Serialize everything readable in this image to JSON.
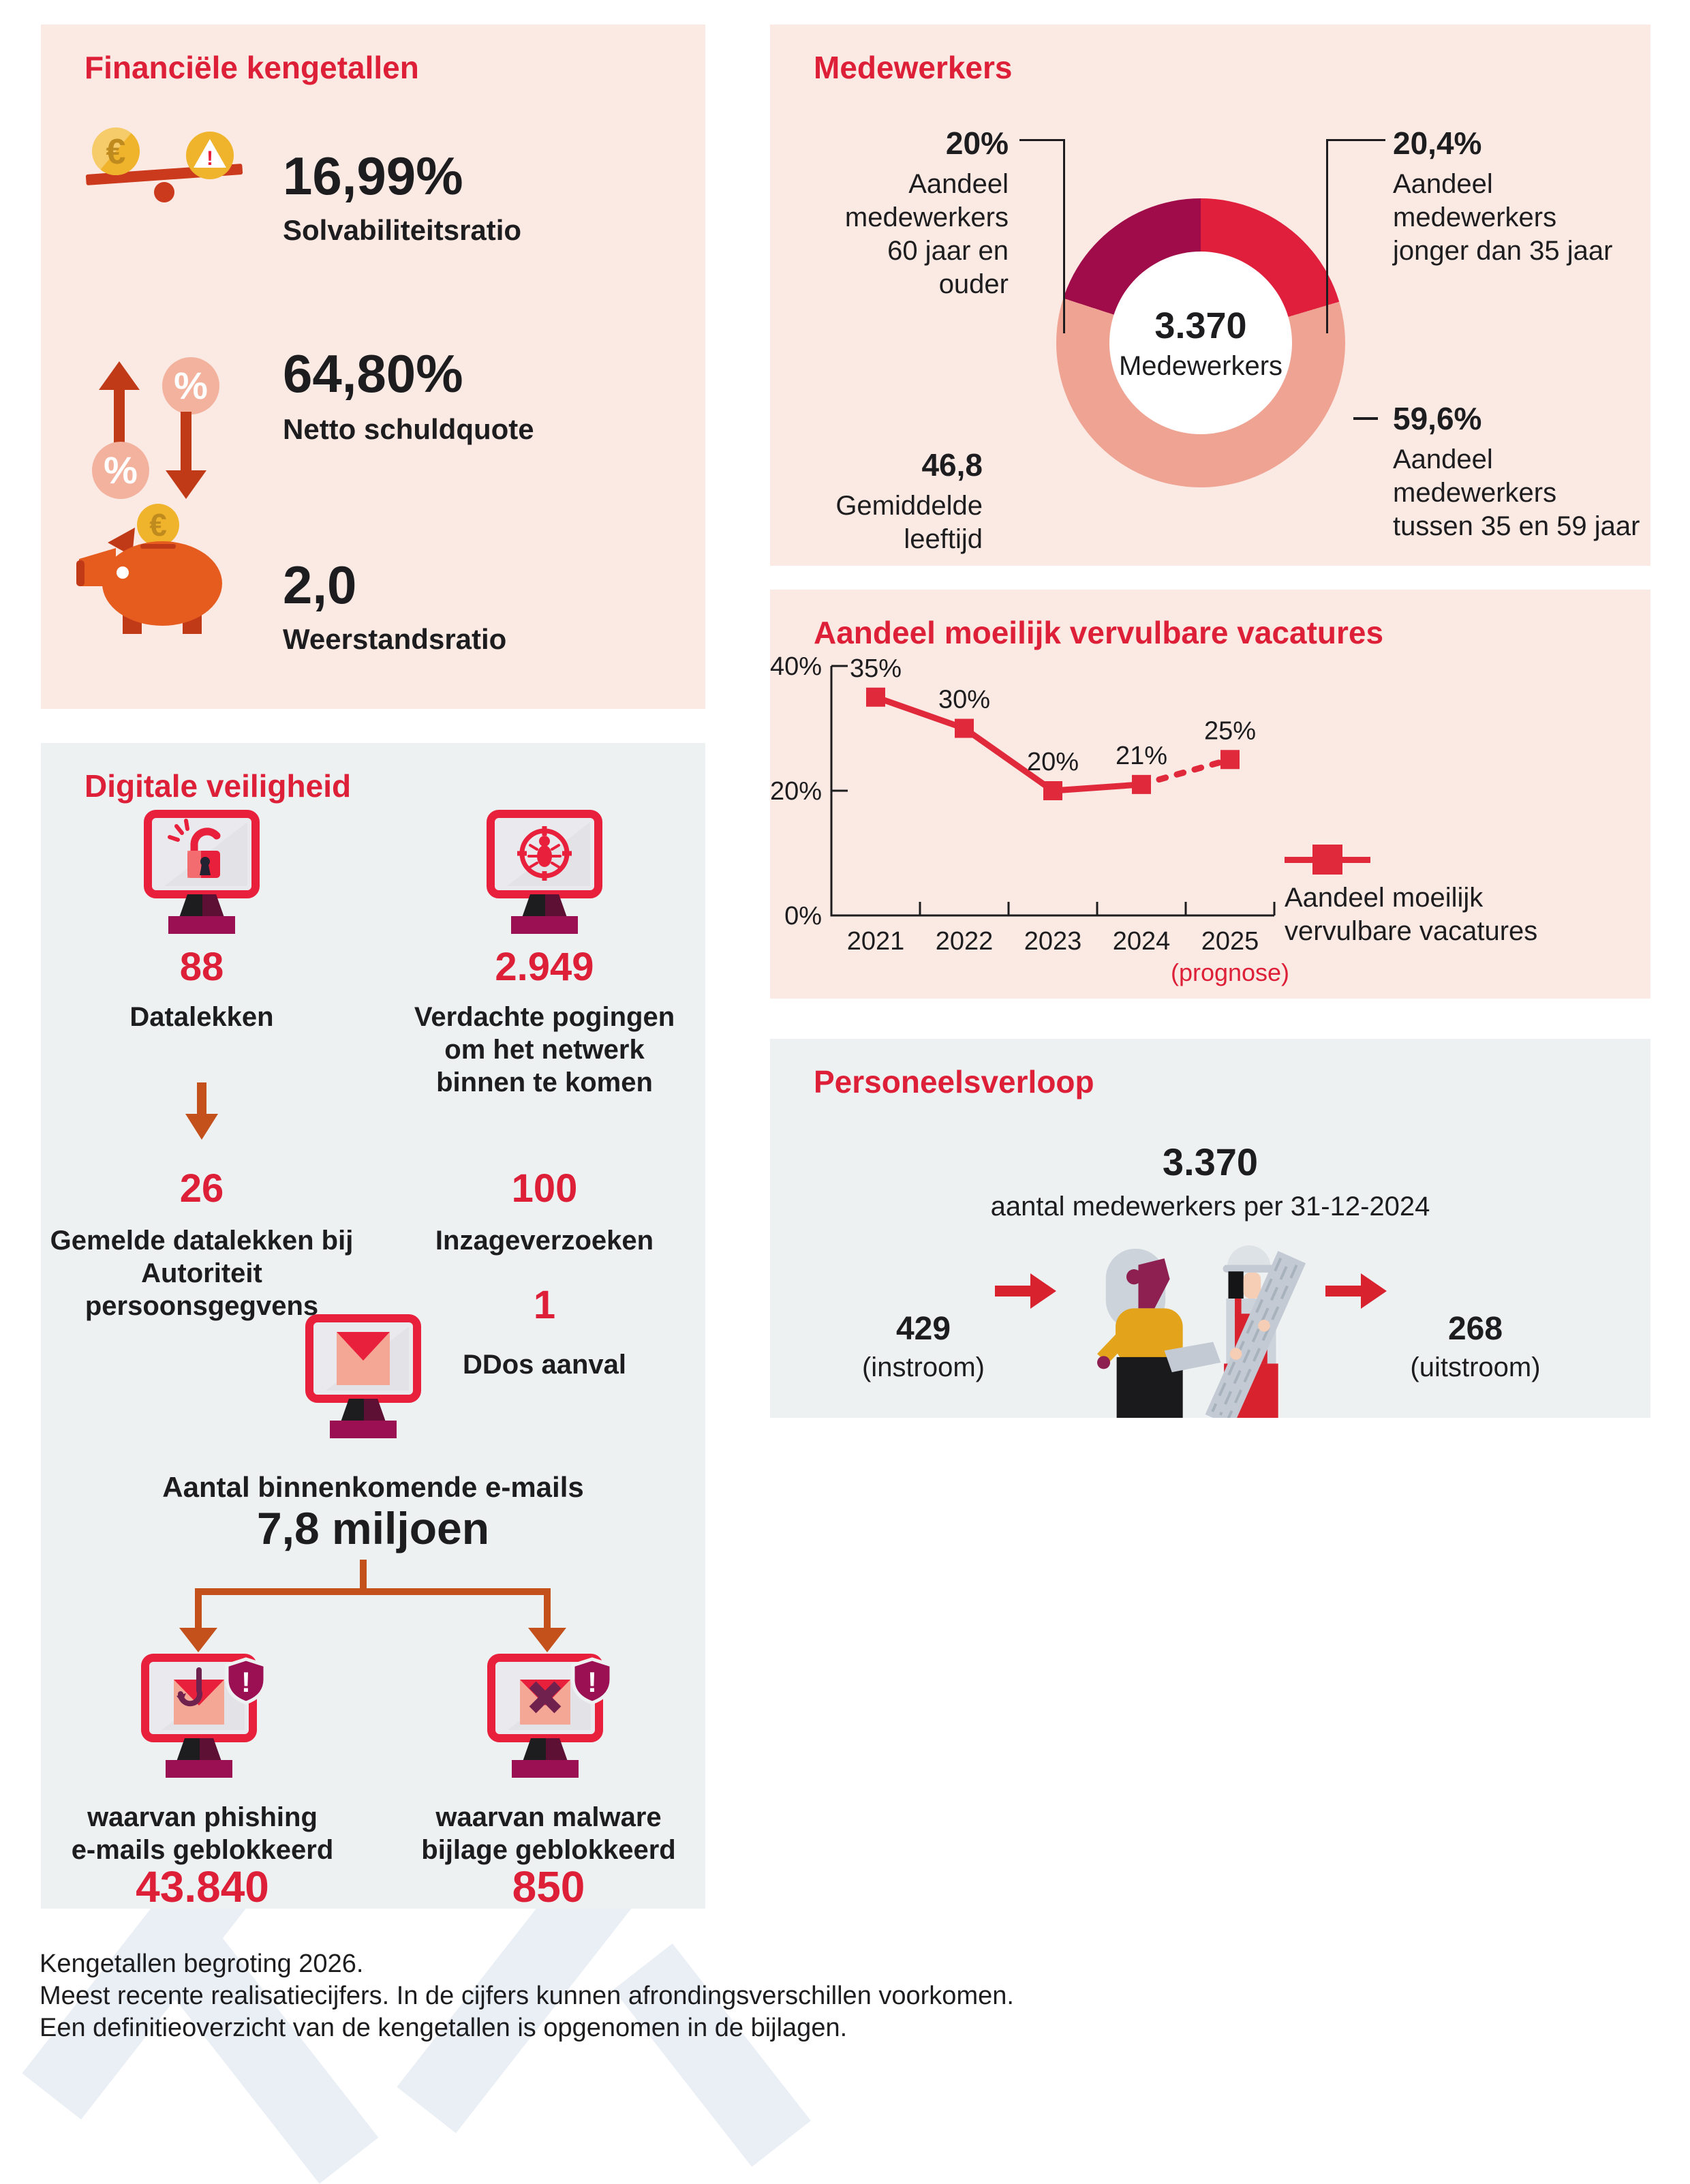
{
  "colors": {
    "crimson": "#dd2038",
    "icon_red": "#e8203c",
    "chart_red": "#e02a3c",
    "donut_red": "#e01f3d",
    "donut_salmon": "#efa393",
    "donut_maroon": "#a00c49",
    "panel_pink": "#fbe9e3",
    "panel_gray": "#edf1f2",
    "dark": "#1d1d1f",
    "orange": "#c4511c",
    "base_magenta": "#9b0f53",
    "screen_gray": "#eaeaee",
    "gold": "#f0b42c",
    "gold_light": "#f6cb6a",
    "gold_dark": "#bf8a1e",
    "pig_orange": "#e65c1f",
    "rust": "#c13a18",
    "salmon_circle": "#f3b29e",
    "bar_red": "#cc3a1d",
    "envelope_salmon": "#f5a796",
    "person_yellow": "#e3a41c",
    "person_gray": "#ccd3db",
    "person_gray2": "#c3cad4",
    "magenta_hair": "#8e2051",
    "overall_red": "#d8232f",
    "skin": "#f6cdb5",
    "watermark": "#e9eff5"
  },
  "icons": {
    "euro": "€",
    "percent": "%",
    "exclaim": "!"
  },
  "financien": {
    "title": "Financiële kengetallen",
    "items": [
      {
        "value": "16,99%",
        "label": "Solvabiliteitsratio"
      },
      {
        "value": "64,80%",
        "label": "Netto schuldquote"
      },
      {
        "value": "2,0",
        "label": "Weerstandsratio"
      }
    ]
  },
  "medewerkers": {
    "title": "Medewerkers",
    "older": {
      "value": "20%",
      "lines": [
        "Aandeel",
        "medewerkers",
        "60 jaar en ouder"
      ]
    },
    "younger": {
      "value": "20,4%",
      "lines": [
        "Aandeel",
        "medewerkers",
        "jonger dan 35 jaar"
      ]
    },
    "middle": {
      "value": "59,6%",
      "lines": [
        "Aandeel",
        "medewerkers",
        "tussen 35 en 59 jaar"
      ]
    },
    "avg_value": "46,8",
    "avg_label": "Gemiddelde leeftijd"
  },
  "vacatures": {
    "title": "Aandeel moeilijk vervulbare vacatures",
    "legend_lines": [
      "Aandeel moeilijk",
      "vervulbare vacatures"
    ],
    "prognose": "(prognose)"
  },
  "personeel": {
    "title": "Personeelsverloop",
    "total_value": "3.370",
    "total_label": "aantal medewerkers per 31-12-2024",
    "in_value": "429",
    "in_label": "(instroom)",
    "out_value": "268",
    "out_label": "(uitstroom)"
  },
  "digitaal": {
    "title": "Digitale veiligheid",
    "datalekken_value": "88",
    "datalekken_label": "Datalekken",
    "pogingen_value": "2.949",
    "pogingen_lines": [
      "Verdachte pogingen",
      "om het netwerk",
      "binnen te komen"
    ],
    "gemeld_value": "26",
    "gemeld_lines": [
      "Gemelde datalekken bij",
      "Autoriteit",
      "persoonsgegvens"
    ],
    "inzage_value": "100",
    "inzage_label": "Inzageverzoeken",
    "ddos_value": "1",
    "ddos_label": "DDos aanval",
    "mail_label": "Aantal binnenkomende e-mails",
    "mail_value": "7,8 miljoen",
    "phishing_lines": [
      "waarvan phishing",
      "e-mails geblokkeerd"
    ],
    "phishing_value": "43.840",
    "malware_lines": [
      "waarvan malware",
      "bijlage geblokkeerd"
    ],
    "malware_value": "850"
  },
  "footer": {
    "lines": [
      "Kengetallen begroting 2026.",
      "Meest recente realisatiecijfers. In de cijfers kunnen afrondingsverschillen voorkomen.",
      "Een definitieoverzicht van de kengetallen is opgenomen in de bijlagen."
    ]
  },
  "chart_data": [
    {
      "type": "pie",
      "donut": true,
      "title": "Medewerkers",
      "center": {
        "value": "3.370",
        "label": "Medewerkers"
      },
      "slices": [
        {
          "label": "Aandeel medewerkers jonger dan 35 jaar",
          "value": 20.4,
          "color": "#e01f3d"
        },
        {
          "label": "Aandeel medewerkers tussen 35 en 59 jaar",
          "value": 59.6,
          "color": "#efa393"
        },
        {
          "label": "Aandeel medewerkers 60 jaar en ouder",
          "value": 20.0,
          "color": "#a00c49"
        }
      ],
      "start_angle_deg": 0,
      "clockwise": true,
      "annotations": [
        "46,8 Gemiddelde leeftijd"
      ]
    },
    {
      "type": "line",
      "title": "Aandeel moeilijk vervulbare vacatures",
      "x": [
        "2021",
        "2022",
        "2023",
        "2024",
        "2025"
      ],
      "values": [
        35,
        30,
        20,
        21,
        25
      ],
      "unit": "%",
      "ylim": [
        0,
        40
      ],
      "yticks": [
        0,
        20,
        40
      ],
      "dashed_from_index": 3,
      "x_note": {
        "index": 4,
        "label": "(prognose)"
      },
      "legend": "Aandeel moeilijk vervulbare vacatures",
      "marker": "square",
      "line_color": "#e02a3c",
      "grid": false,
      "legend_position": "right"
    }
  ]
}
